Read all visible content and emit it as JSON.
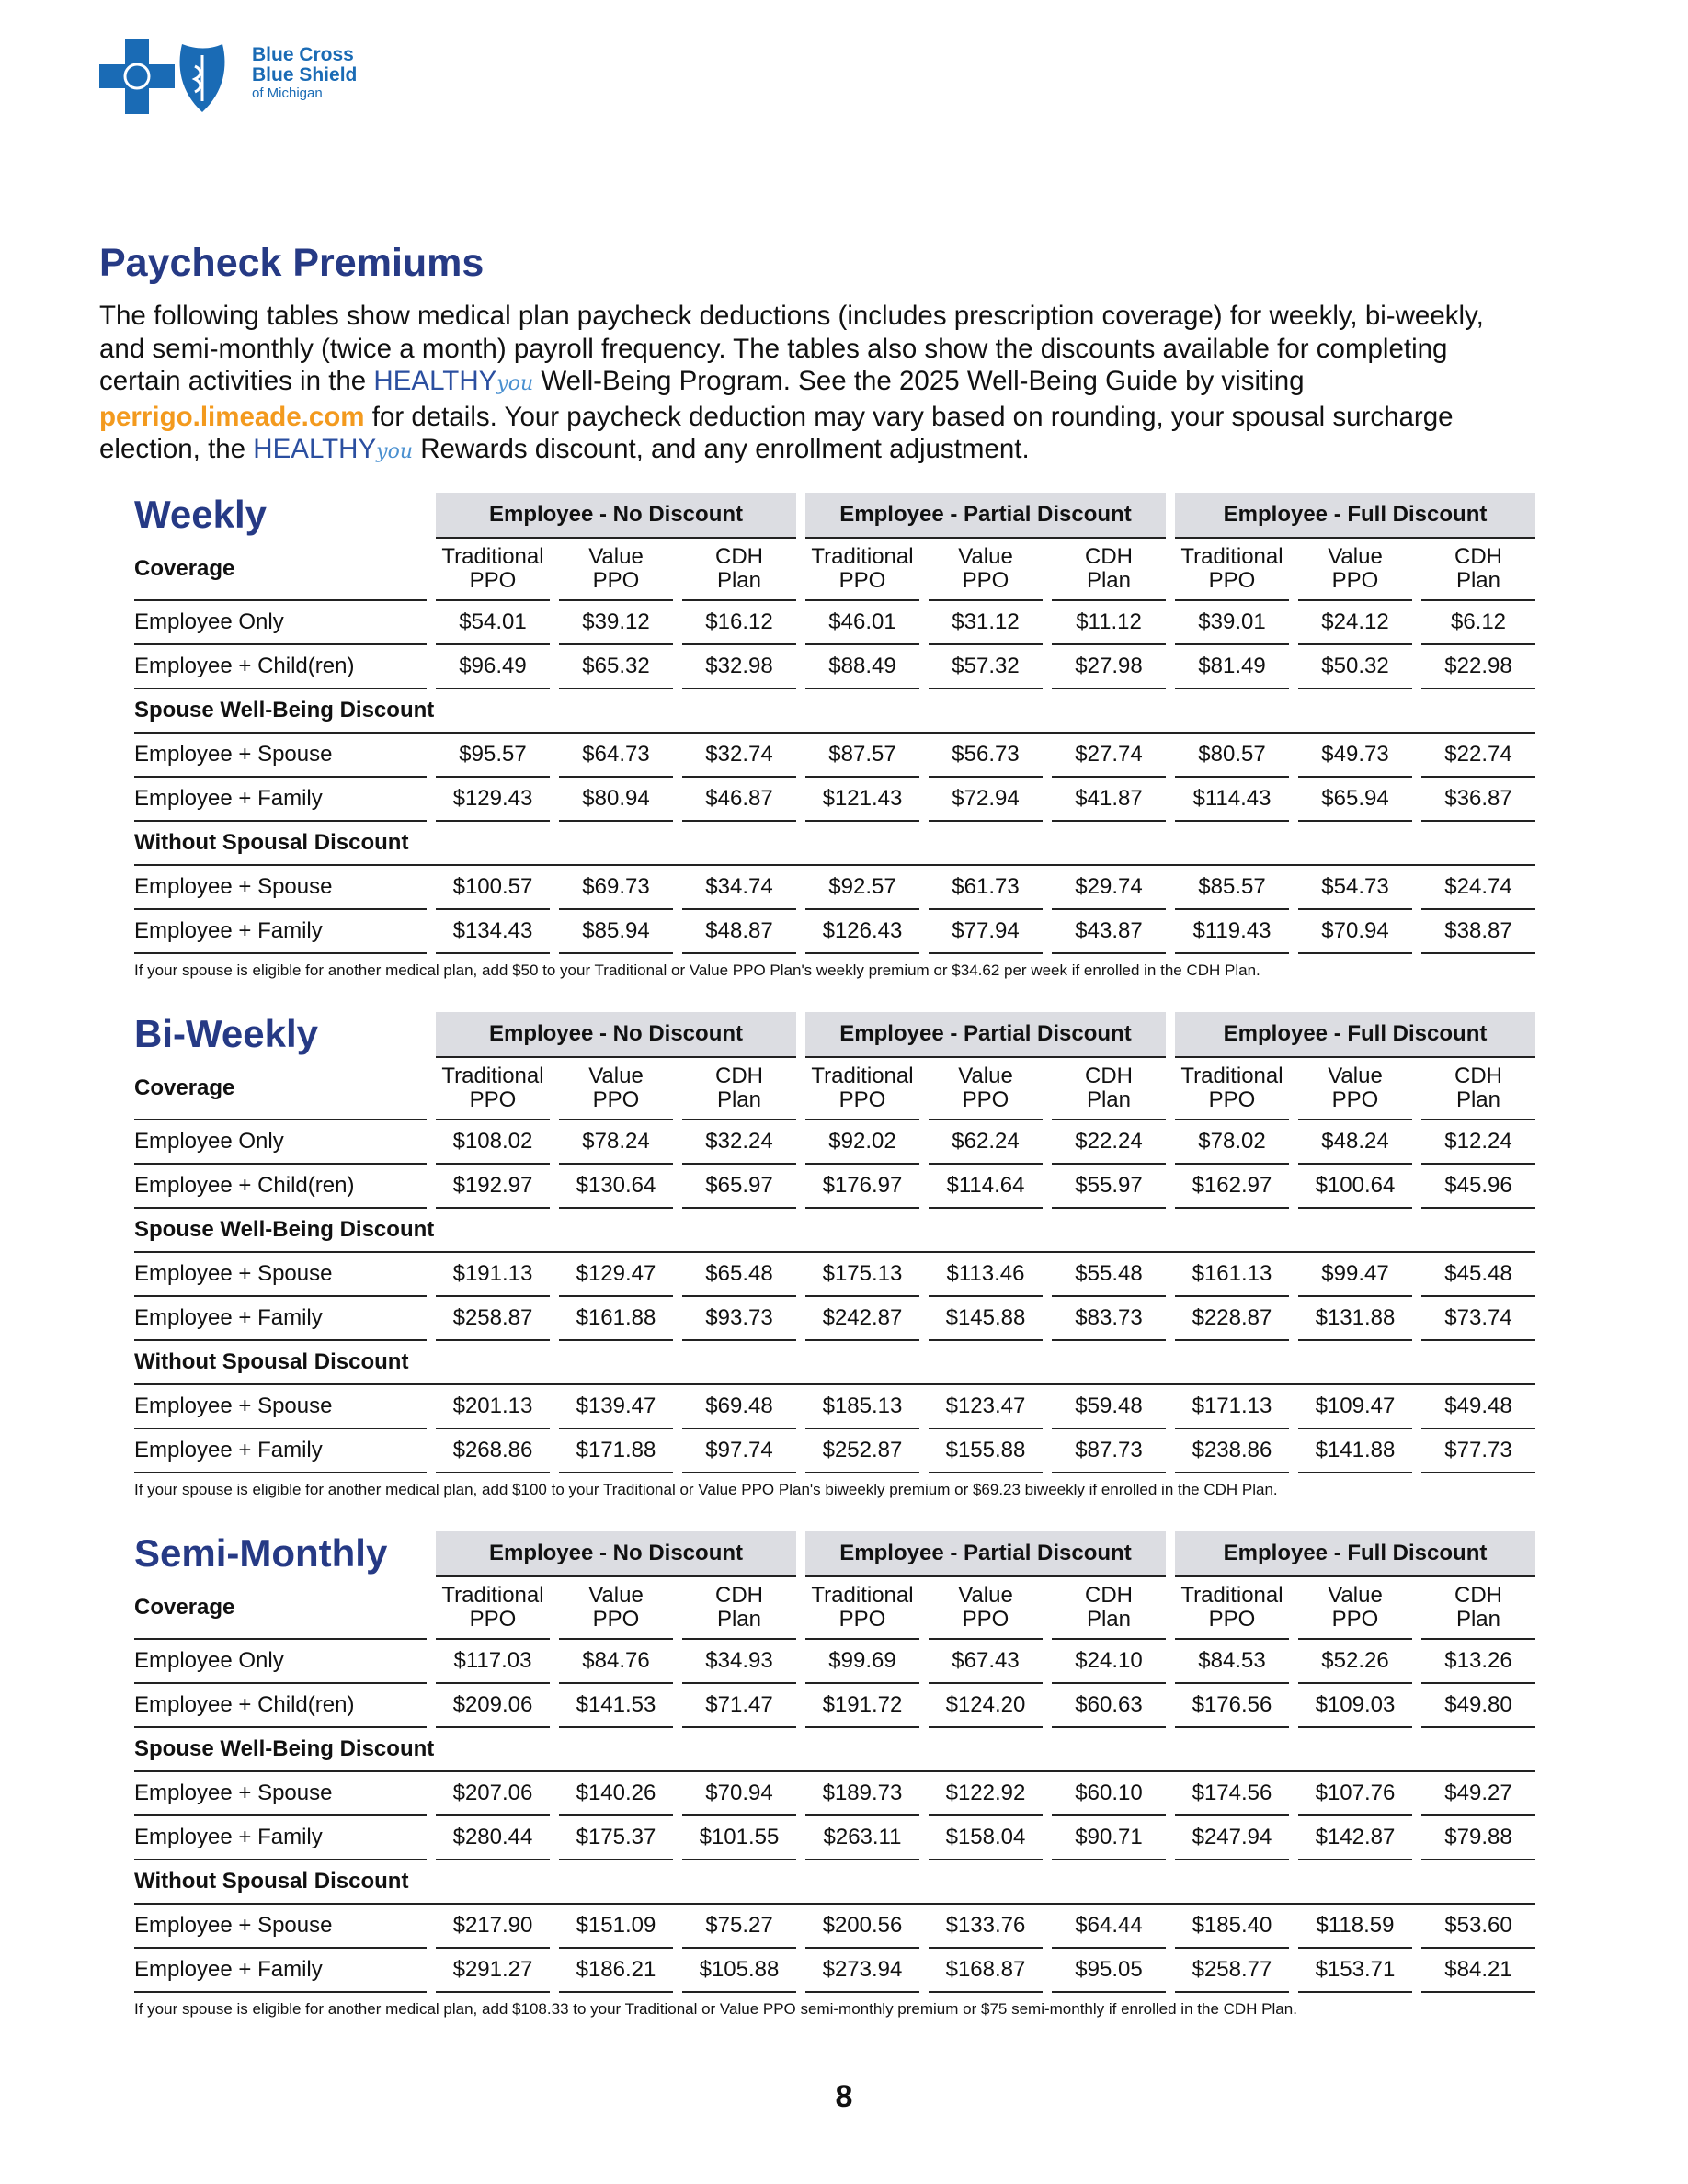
{
  "header": {
    "logo": [
      "Blue Cross",
      "Blue Shield",
      "of Michigan"
    ]
  },
  "title": "Paycheck Premiums",
  "intro": [
    "The following tables show medical plan paycheck deductions (includes prescription coverage) for weekly, bi-weekly, and semi-monthly (twice a month) payroll frequency. The tables also show the discounts available for completing certain activities in the ",
    "HEALTHY",
    "you",
    " Well-Being Program. See the 2025 Well-Being Guide by visiting ",
    "perrigo.limeade.com",
    " for details. Your paycheck deduction may vary based on rounding, your spousal surcharge election, the ",
    "HEALTHY",
    "you",
    " Rewards discount, and any enrollment adjustment."
  ],
  "tables": [
    {
      "title": "Weekly",
      "groups": [
        "Employee - No Discount",
        "Employee - Partial Discount",
        "Employee - Full Discount"
      ],
      "columns": [
        [
          "Traditional",
          "PPO"
        ],
        [
          "Value",
          "PPO"
        ],
        [
          "CDH",
          "Plan"
        ],
        [
          "Traditional",
          "PPO"
        ],
        [
          "Value",
          "PPO"
        ],
        [
          "CDH",
          "Plan"
        ],
        [
          "Traditional",
          "PPO"
        ],
        [
          "Value",
          "PPO"
        ],
        [
          "CDH",
          "Plan"
        ]
      ],
      "coverage": "Coverage",
      "sections": [
        {
          "rows": [
            [
              "Employee Only",
              "$54.01",
              "$39.12",
              "$16.12",
              "$46.01",
              "$31.12",
              "$11.12",
              "$39.01",
              "$24.12",
              "$6.12"
            ],
            [
              "Employee + Child(ren)",
              "$96.49",
              "$65.32",
              "$32.98",
              "$88.49",
              "$57.32",
              "$27.98",
              "$81.49",
              "$50.32",
              "$22.98"
            ]
          ]
        },
        {
          "heading": "Spouse Well-Being Discount",
          "rows": [
            [
              "Employee + Spouse",
              "$95.57",
              "$64.73",
              "$32.74",
              "$87.57",
              "$56.73",
              "$27.74",
              "$80.57",
              "$49.73",
              "$22.74"
            ],
            [
              "Employee + Family",
              "$129.43",
              "$80.94",
              "$46.87",
              "$121.43",
              "$72.94",
              "$41.87",
              "$114.43",
              "$65.94",
              "$36.87"
            ]
          ]
        },
        {
          "heading": "Without Spousal Discount",
          "rows": [
            [
              "Employee + Spouse",
              "$100.57",
              "$69.73",
              "$34.74",
              "$92.57",
              "$61.73",
              "$29.74",
              "$85.57",
              "$54.73",
              "$24.74"
            ],
            [
              "Employee + Family",
              "$134.43",
              "$85.94",
              "$48.87",
              "$126.43",
              "$77.94",
              "$43.87",
              "$119.43",
              "$70.94",
              "$38.87"
            ]
          ]
        }
      ],
      "note": "If your spouse is eligible for another medical plan, add $50 to your Traditional or Value PPO Plan's weekly premium or $34.62 per week if enrolled in the CDH Plan."
    },
    {
      "title": "Bi-Weekly",
      "groups": [
        "Employee - No Discount",
        "Employee - Partial Discount",
        "Employee - Full Discount"
      ],
      "columns": [
        [
          "Traditional",
          "PPO"
        ],
        [
          "Value",
          "PPO"
        ],
        [
          "CDH",
          "Plan"
        ],
        [
          "Traditional",
          "PPO"
        ],
        [
          "Value",
          "PPO"
        ],
        [
          "CDH",
          "Plan"
        ],
        [
          "Traditional",
          "PPO"
        ],
        [
          "Value",
          "PPO"
        ],
        [
          "CDH",
          "Plan"
        ]
      ],
      "coverage": "Coverage",
      "sections": [
        {
          "rows": [
            [
              "Employee Only",
              "$108.02",
              "$78.24",
              "$32.24",
              "$92.02",
              "$62.24",
              "$22.24",
              "$78.02",
              "$48.24",
              "$12.24"
            ],
            [
              "Employee + Child(ren)",
              "$192.97",
              "$130.64",
              "$65.97",
              "$176.97",
              "$114.64",
              "$55.97",
              "$162.97",
              "$100.64",
              "$45.96"
            ]
          ]
        },
        {
          "heading": "Spouse Well-Being Discount",
          "rows": [
            [
              "Employee + Spouse",
              "$191.13",
              "$129.47",
              "$65.48",
              "$175.13",
              "$113.46",
              "$55.48",
              "$161.13",
              "$99.47",
              "$45.48"
            ],
            [
              "Employee + Family",
              "$258.87",
              "$161.88",
              "$93.73",
              "$242.87",
              "$145.88",
              "$83.73",
              "$228.87",
              "$131.88",
              "$73.74"
            ]
          ]
        },
        {
          "heading": "Without Spousal Discount",
          "rows": [
            [
              "Employee + Spouse",
              "$201.13",
              "$139.47",
              "$69.48",
              "$185.13",
              "$123.47",
              "$59.48",
              "$171.13",
              "$109.47",
              "$49.48"
            ],
            [
              "Employee + Family",
              "$268.86",
              "$171.88",
              "$97.74",
              "$252.87",
              "$155.88",
              "$87.73",
              "$238.86",
              "$141.88",
              "$77.73"
            ]
          ]
        }
      ],
      "note": "If your spouse is eligible for another medical plan, add $100 to your Traditional or Value PPO Plan's biweekly premium or $69.23 biweekly if enrolled in the CDH Plan."
    },
    {
      "title": "Semi-Monthly",
      "groups": [
        "Employee - No Discount",
        "Employee - Partial Discount",
        "Employee - Full Discount"
      ],
      "columns": [
        [
          "Traditional",
          "PPO"
        ],
        [
          "Value",
          "PPO"
        ],
        [
          "CDH",
          "Plan"
        ],
        [
          "Traditional",
          "PPO"
        ],
        [
          "Value",
          "PPO"
        ],
        [
          "CDH",
          "Plan"
        ],
        [
          "Traditional",
          "PPO"
        ],
        [
          "Value",
          "PPO"
        ],
        [
          "CDH",
          "Plan"
        ]
      ],
      "coverage": "Coverage",
      "sections": [
        {
          "rows": [
            [
              "Employee Only",
              "$117.03",
              "$84.76",
              "$34.93",
              "$99.69",
              "$67.43",
              "$24.10",
              "$84.53",
              "$52.26",
              "$13.26"
            ],
            [
              "Employee + Child(ren)",
              "$209.06",
              "$141.53",
              "$71.47",
              "$191.72",
              "$124.20",
              "$60.63",
              "$176.56",
              "$109.03",
              "$49.80"
            ]
          ]
        },
        {
          "heading": "Spouse Well-Being Discount",
          "rows": [
            [
              "Employee + Spouse",
              "$207.06",
              "$140.26",
              "$70.94",
              "$189.73",
              "$122.92",
              "$60.10",
              "$174.56",
              "$107.76",
              "$49.27"
            ],
            [
              "Employee + Family",
              "$280.44",
              "$175.37",
              "$101.55",
              "$263.11",
              "$158.04",
              "$90.71",
              "$247.94",
              "$142.87",
              "$79.88"
            ]
          ]
        },
        {
          "heading": "Without Spousal Discount",
          "rows": [
            [
              "Employee + Spouse",
              "$217.90",
              "$151.09",
              "$75.27",
              "$200.56",
              "$133.76",
              "$64.44",
              "$185.40",
              "$118.59",
              "$53.60"
            ],
            [
              "Employee + Family",
              "$291.27",
              "$186.21",
              "$105.88",
              "$273.94",
              "$168.87",
              "$95.05",
              "$258.77",
              "$153.71",
              "$84.21"
            ]
          ]
        }
      ],
      "note": "If your spouse is eligible for another medical plan, add $108.33 to your Traditional or Value PPO semi-monthly premium or $75 semi-monthly if enrolled in the CDH Plan."
    }
  ],
  "page_number": "8"
}
